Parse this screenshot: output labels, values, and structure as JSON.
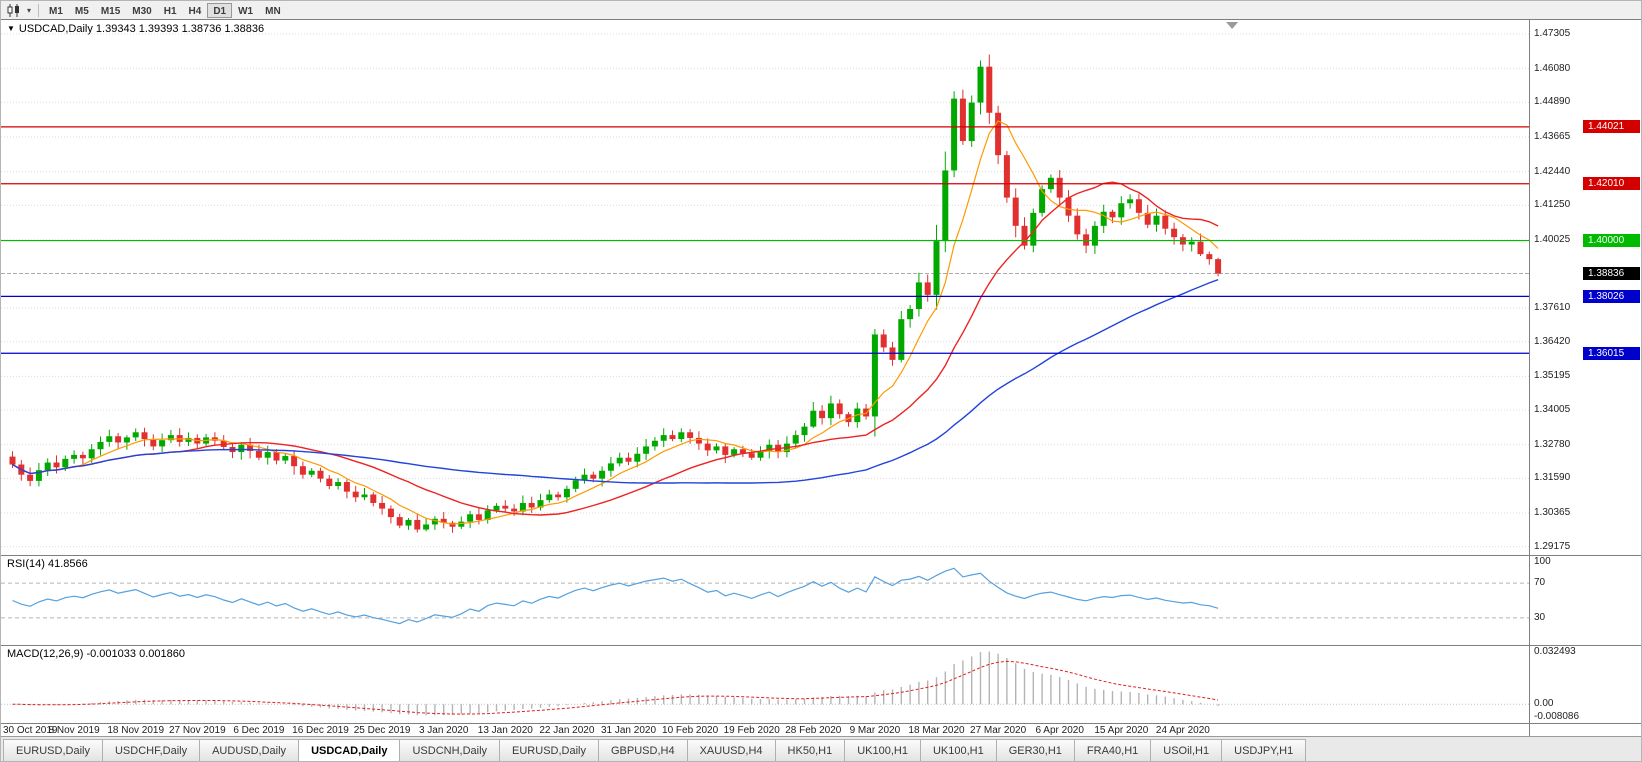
{
  "toolbar": {
    "timeframes": [
      "M1",
      "M5",
      "M15",
      "M30",
      "H1",
      "H4",
      "D1",
      "W1",
      "MN"
    ],
    "active_timeframe": "D1"
  },
  "main_chart": {
    "title": "USDCAD,Daily 1.39343 1.39393 1.38736 1.38836",
    "symbol": "USDCAD",
    "period": "Daily",
    "price_ticks": [
      "1.47305",
      "1.46080",
      "1.44890",
      "1.43665",
      "1.42440",
      "1.41250",
      "1.40025",
      "1.37610",
      "1.36420",
      "1.35195",
      "1.34005",
      "1.32780",
      "1.31590",
      "1.30365",
      "1.29175"
    ],
    "current_price": "1.38836",
    "hlines": [
      {
        "price": 1.44021,
        "label": "1.44021",
        "color": "#d40000"
      },
      {
        "price": 1.4201,
        "label": "1.42010",
        "color": "#d40000"
      },
      {
        "price": 1.4,
        "label": "1.40000",
        "color": "#00bb00"
      },
      {
        "price": 1.38026,
        "label": "1.38026",
        "color": "#0000cc"
      },
      {
        "price": 1.36015,
        "label": "1.36015",
        "color": "#0000cc"
      }
    ]
  },
  "rsi_panel": {
    "label": "RSI(14) 41.8566",
    "value": 41.8566,
    "line_color": "#55a0dd",
    "levels": [
      {
        "text": "100",
        "value": 100
      },
      {
        "text": "70",
        "value": 70
      },
      {
        "text": "30",
        "value": 30
      }
    ]
  },
  "macd_panel": {
    "label": "MACD(12,26,9) -0.001033 0.001860",
    "macd_value": -0.001033,
    "signal_value": 0.00186,
    "histogram_color": "#b4b4b4",
    "signal_color": "#e02020",
    "axis": [
      {
        "text": "0.032493",
        "value": 0.032493
      },
      {
        "text": "0.00",
        "value": 0
      },
      {
        "text": "-0.008086",
        "value": -0.008086
      }
    ]
  },
  "date_axis": {
    "labels": [
      "30 Oct 2019",
      "8 Nov 2019",
      "18 Nov 2019",
      "27 Nov 2019",
      "6 Dec 2019",
      "16 Dec 2019",
      "25 Dec 2019",
      "3 Jan 2020",
      "13 Jan 2020",
      "22 Jan 2020",
      "31 Jan 2020",
      "10 Feb 2020",
      "19 Feb 2020",
      "28 Feb 2020",
      "9 Mar 2020",
      "18 Mar 2020",
      "27 Mar 2020",
      "6 Apr 2020",
      "15 Apr 2020",
      "24 Apr 2020"
    ]
  },
  "tabs": {
    "items": [
      "EURUSD,Daily",
      "USDCHF,Daily",
      "AUDUSD,Daily",
      "USDCAD,Daily",
      "USDCNH,Daily",
      "EURUSD,Daily",
      "GBPUSD,H4",
      "XAUUSD,H4",
      "HK50,H1",
      "UK100,H1",
      "UK100,H1",
      "GER30,H1",
      "FRA40,H1",
      "USOil,H1",
      "USDJPY,H1"
    ],
    "active_index": 3
  },
  "chart_data": {
    "type": "candlestick",
    "title": "USDCAD Daily",
    "bars_per_label": 7,
    "y_range": [
      1.2888,
      1.478
    ],
    "x_labels": [
      "30 Oct 2019",
      "8 Nov 2019",
      "18 Nov 2019",
      "27 Nov 2019",
      "6 Dec 2019",
      "16 Dec 2019",
      "25 Dec 2019",
      "3 Jan 2020",
      "13 Jan 2020",
      "22 Jan 2020",
      "31 Jan 2020",
      "10 Feb 2020",
      "19 Feb 2020",
      "28 Feb 2020",
      "9 Mar 2020",
      "18 Mar 2020",
      "27 Mar 2020",
      "6 Apr 2020",
      "15 Apr 2020",
      "24 Apr 2020"
    ],
    "closes": [
      1.3208,
      1.3172,
      1.315,
      1.3188,
      1.3215,
      1.3198,
      1.3228,
      1.3242,
      1.323,
      1.3262,
      1.3288,
      1.3308,
      1.3286,
      1.3304,
      1.3322,
      1.3298,
      1.3272,
      1.3294,
      1.3312,
      1.3288,
      1.3302,
      1.3282,
      1.3304,
      1.3292,
      1.327,
      1.3252,
      1.3278,
      1.3256,
      1.3232,
      1.3252,
      1.3222,
      1.3238,
      1.3202,
      1.3172,
      1.3186,
      1.3158,
      1.3132,
      1.3146,
      1.3112,
      1.3092,
      1.3102,
      1.3072,
      1.3052,
      1.3022,
      1.2992,
      1.3012,
      1.2978,
      1.2996,
      1.3016,
      1.3002,
      1.2988,
      1.3006,
      1.3032,
      1.3012,
      1.3046,
      1.3062,
      1.3052,
      1.3042,
      1.3072,
      1.3056,
      1.3082,
      1.3102,
      1.3092,
      1.3122,
      1.3152,
      1.3172,
      1.3158,
      1.3186,
      1.3212,
      1.3232,
      1.3218,
      1.3246,
      1.3272,
      1.3292,
      1.3312,
      1.3298,
      1.3322,
      1.3302,
      1.3282,
      1.3258,
      1.3272,
      1.3242,
      1.3262,
      1.3248,
      1.3232,
      1.3256,
      1.3278,
      1.3252,
      1.3282,
      1.3312,
      1.3342,
      1.3398,
      1.3372,
      1.3424,
      1.3386,
      1.3358,
      1.3406,
      1.3378,
      1.3668,
      1.3622,
      1.3578,
      1.3722,
      1.3758,
      1.3852,
      1.3808,
      1.3998,
      1.4248,
      1.4502,
      1.4352,
      1.4488,
      1.4615,
      1.4452,
      1.4302,
      1.4152,
      1.4052,
      1.3982,
      1.4098,
      1.4182,
      1.4222,
      1.4152,
      1.4088,
      1.4022,
      1.3982,
      1.4052,
      1.4102,
      1.4082,
      1.4132,
      1.4146,
      1.4098,
      1.4056,
      1.4088,
      1.4042,
      1.4012,
      1.3986,
      1.3996,
      1.3952,
      1.39343,
      1.38836
    ],
    "ohlc_current": {
      "open": 1.39343,
      "high": 1.39393,
      "low": 1.38736,
      "close": 1.38836
    },
    "colors": {
      "bull": "#00a800",
      "bear": "#e03030",
      "grid": "#dcdcdc",
      "bid_line": "#aaaaaa"
    },
    "moving_averages": [
      {
        "name": "MA fast",
        "period": 7,
        "color": "#ff9900",
        "width": 1.2
      },
      {
        "name": "MA medium",
        "period": 20,
        "color": "#ee2222",
        "width": 1.4
      },
      {
        "name": "MA slow",
        "period": 55,
        "color": "#2244dd",
        "width": 1.4
      }
    ],
    "rsi": {
      "period": 14,
      "current": 41.8566,
      "levels": [
        100,
        70,
        30
      ]
    },
    "macd": {
      "fast": 12,
      "slow": 26,
      "signal": 9,
      "current": -0.001033,
      "signal_current": 0.00186,
      "axis_max": 0.032493,
      "axis_min": -0.008086
    },
    "hlines": [
      1.44021,
      1.4201,
      1.4,
      1.38026,
      1.36015
    ]
  }
}
